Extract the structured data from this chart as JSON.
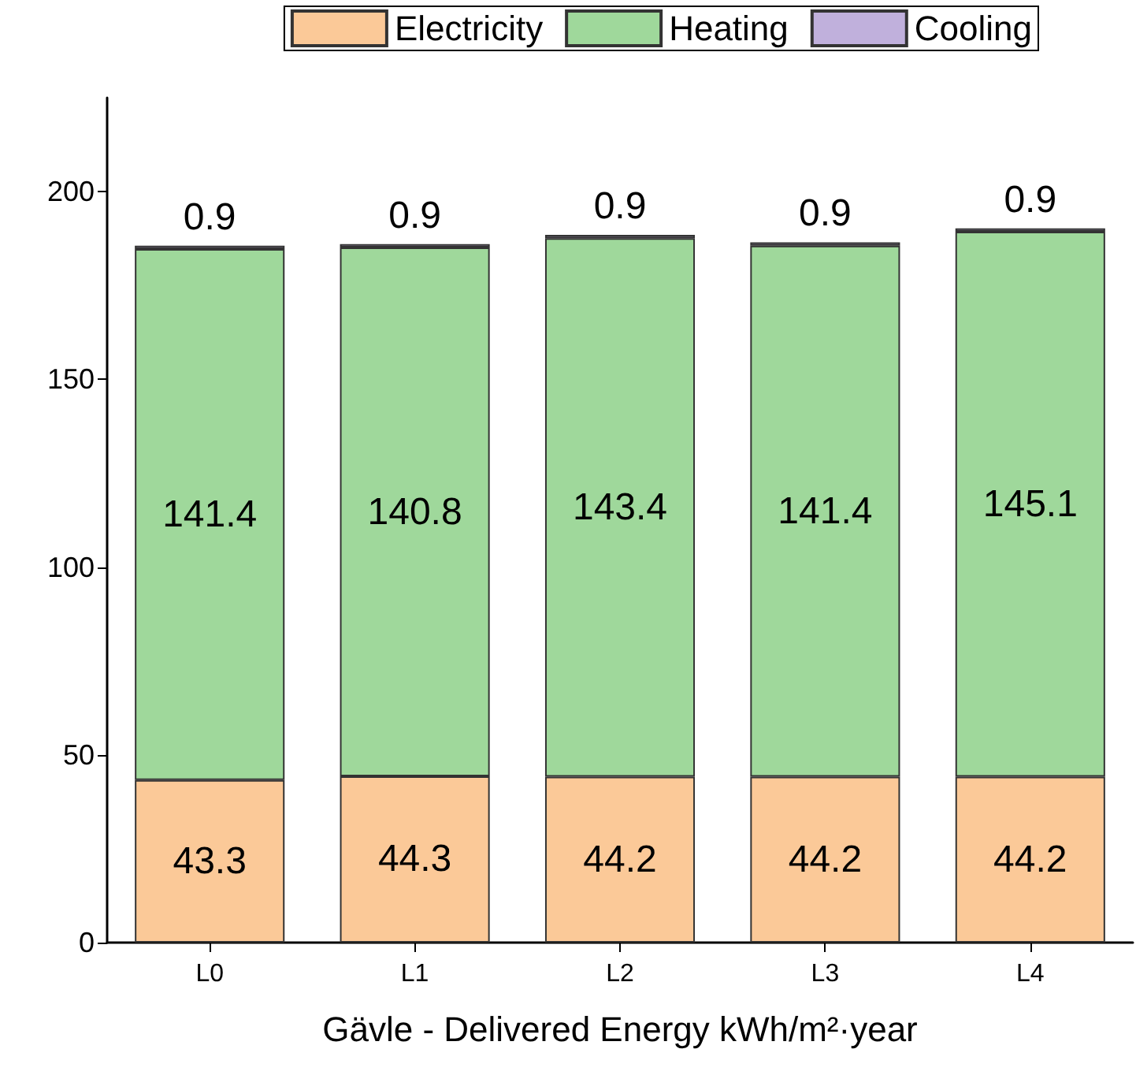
{
  "chart_data": {
    "type": "bar",
    "stacked": true,
    "xlabel": "Gävle - Delivered Energy kWh/m²·year",
    "categories": [
      "L0",
      "L1",
      "L2",
      "L3",
      "L4"
    ],
    "series": [
      {
        "name": "Electricity",
        "color": "#fbc998",
        "values": [
          43.3,
          44.3,
          44.2,
          44.2,
          44.2
        ]
      },
      {
        "name": "Heating",
        "color": "#9fd89b",
        "values": [
          141.4,
          140.8,
          143.4,
          141.4,
          145.1
        ]
      },
      {
        "name": "Cooling",
        "color": "#c0b0dc",
        "values": [
          0.9,
          0.9,
          0.9,
          0.9,
          0.9
        ]
      }
    ],
    "ylim": [
      0,
      225
    ],
    "yticks": [
      0,
      50,
      100,
      150,
      200
    ],
    "grid": false,
    "legend": "top",
    "data_labels": true
  }
}
